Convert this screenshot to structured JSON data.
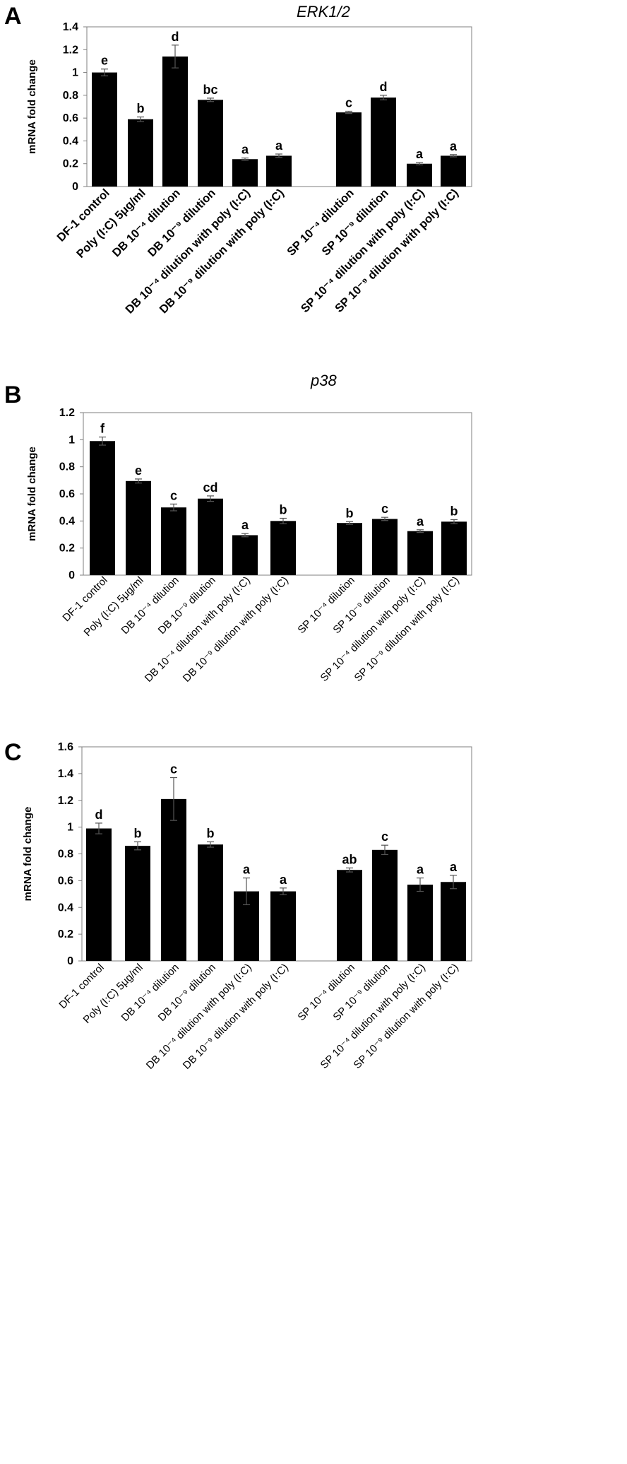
{
  "chart_data": [
    {
      "type": "bar",
      "panel": "A",
      "title": "ERK1/2",
      "xlabel": "",
      "ylabel": "mRNA fold change",
      "ylim": [
        0,
        1.4
      ],
      "yticks": [
        "0",
        "0.2",
        "0.4",
        "0.6",
        "0.8",
        "1",
        "1.2",
        "1.4"
      ],
      "categories": [
        "DF-1 control",
        "Poly (I:C) 5μg/ml",
        "DB 10⁻⁴ dilution",
        "DB  10⁻⁹ dilution",
        "DB 10⁻⁴ dilution with poly (I:C)",
        "DB 10⁻⁹ dilution with poly (I:C)",
        "SP 10⁻⁴ dilution",
        "SP 10⁻⁹ dilution",
        "SP 10⁻⁴ dilution with poly (I:C)",
        "SP 10⁻⁹ dilution with poly (I:C)"
      ],
      "values": [
        1.0,
        0.59,
        1.14,
        0.76,
        0.24,
        0.27,
        0.65,
        0.78,
        0.2,
        0.27
      ],
      "errors": [
        0.03,
        0.02,
        0.1,
        0.015,
        0.01,
        0.015,
        0.01,
        0.02,
        0.01,
        0.01
      ],
      "significance": [
        "e",
        "b",
        "d",
        "bc",
        "a",
        "a",
        "c",
        "d",
        "a",
        "a"
      ],
      "grid": false,
      "bar_color": "#000000"
    },
    {
      "type": "bar",
      "panel": "B",
      "title": "p38",
      "xlabel": "",
      "ylabel": "mRNA fold change",
      "ylim": [
        0,
        1.2
      ],
      "yticks": [
        "0",
        "0.2",
        "0.4",
        "0.6",
        "0.8",
        "1",
        "1.2"
      ],
      "categories": [
        "DF-1 control",
        "Poly (I:C) 5μg/ml",
        "DB 10⁻⁴ dilution",
        "DB 10⁻⁹ dilution",
        "DB 10⁻⁴  dilution with poly (I:C)",
        "DB 10⁻⁹ dilution with poly (I:C)",
        "SP 10⁻⁴ dilution",
        "SP 10⁻⁹ dilution",
        "SP 10⁻⁴ dilution with poly (I:C)",
        "SP 10⁻⁹ dilution with poly (I:C)"
      ],
      "values": [
        0.99,
        0.695,
        0.5,
        0.565,
        0.295,
        0.4,
        0.385,
        0.415,
        0.325,
        0.395
      ],
      "errors": [
        0.03,
        0.015,
        0.025,
        0.02,
        0.012,
        0.02,
        0.01,
        0.012,
        0.01,
        0.015
      ],
      "significance": [
        "f",
        "e",
        "c",
        "cd",
        "a",
        "b",
        "b",
        "c",
        "a",
        "b"
      ],
      "grid": false,
      "bar_color": "#000000"
    },
    {
      "type": "bar",
      "panel": "C",
      "title": "",
      "xlabel": "",
      "ylabel": "mRNA fold change",
      "ylim": [
        0,
        1.6
      ],
      "yticks": [
        "0",
        "0.2",
        "0.4",
        "0.6",
        "0.8",
        "1",
        "1.2",
        "1.4",
        "1.6"
      ],
      "categories": [
        "DF-1 control",
        "Poly (I:C) 5μg/ml",
        "DB 10⁻⁴ dilution",
        "DB 10⁻⁹ dilution",
        "DB 10⁻⁴  dilution with poly (I:C)",
        "DB 10⁻⁹ dilution with poly (I:C)",
        "SP 10⁻⁴ dilution",
        "SP 10⁻⁹ dilution",
        "SP 10⁻⁴ dilution with poly (I:C)",
        "SP 10⁻⁹ dilution with poly (I:C)"
      ],
      "values": [
        0.99,
        0.86,
        1.21,
        0.87,
        0.52,
        0.52,
        0.68,
        0.83,
        0.57,
        0.59
      ],
      "errors": [
        0.04,
        0.03,
        0.16,
        0.02,
        0.1,
        0.025,
        0.015,
        0.035,
        0.05,
        0.05
      ],
      "significance": [
        "d",
        "b",
        "c",
        "b",
        "a",
        "a",
        "ab",
        "c",
        "a",
        "a"
      ],
      "grid": false,
      "bar_color": "#000000"
    }
  ]
}
